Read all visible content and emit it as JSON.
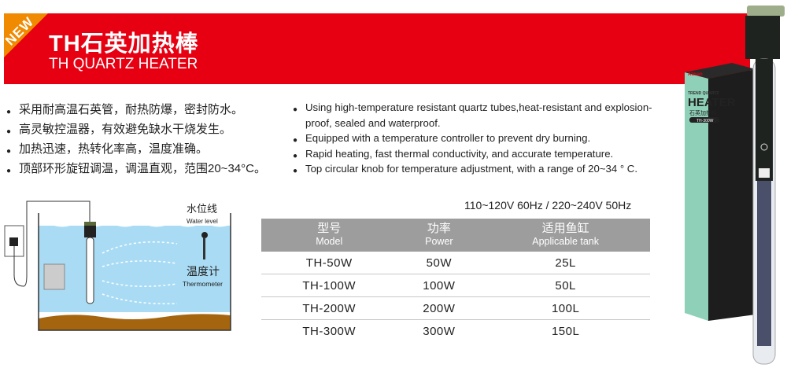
{
  "badge": "NEW",
  "header": {
    "title": "TH石英加热棒",
    "subtitle": "TH QUARTZ HEATER",
    "accent": "#e60012",
    "badge_color": "#f08a00"
  },
  "features_zh": [
    "采用耐高温石英管，耐热防爆，密封防水。",
    "高灵敏控温器，有效避免缺水干烧发生。",
    "加热迅速，热转化率高，温度准确。",
    "顶部环形旋钮调温，调温直观，范围20~34°C。"
  ],
  "features_en": [
    "Using high-temperature resistant quartz tubes,heat-resistant and explosion-proof, sealed and waterproof.",
    "Equipped with a temperature controller to prevent dry burning.",
    "Rapid heating, fast thermal conductivity, and accurate temperature.",
    "Top circular knob for temperature adjustment, with a range of 20~34 ° C."
  ],
  "diagram": {
    "water_level_zh": "水位线",
    "water_level_en": "Water level",
    "thermometer_zh": "温度计",
    "thermometer_en": "Thermometer"
  },
  "voltage": "110~120V 60Hz / 220~240V 50Hz",
  "table": {
    "headers": [
      {
        "zh": "型号",
        "en": "Model"
      },
      {
        "zh": "功率",
        "en": "Power"
      },
      {
        "zh": "适用鱼缸",
        "en": "Applicable tank"
      }
    ],
    "rows": [
      [
        "TH-50W",
        "50W",
        "25L"
      ],
      [
        "TH-100W",
        "100W",
        "50L"
      ],
      [
        "TH-200W",
        "200W",
        "100L"
      ],
      [
        "TH-300W",
        "300W",
        "150L"
      ]
    ]
  },
  "product_box": {
    "brand": "Atman",
    "line1": "TREND QUARTZ",
    "line2": "HEATER",
    "line3": "石英加热棒",
    "model": "TH-300W"
  }
}
